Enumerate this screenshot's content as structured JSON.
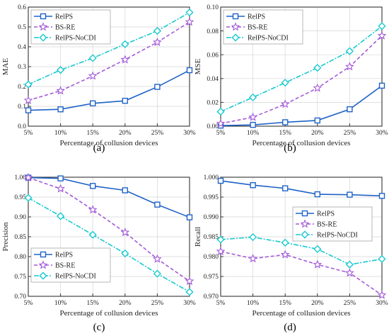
{
  "colors": {
    "relps": "#1f63c7",
    "bsre": "#a45ad8",
    "nocdi": "#19c9cf",
    "grid": "#d5d5d5",
    "axis": "#333333"
  },
  "chart_data": [
    {
      "type": "line",
      "panel": "(a)",
      "xlabel": "Percentage of collusion devices",
      "ylabel": "MAE",
      "categories": [
        "5%",
        "10%",
        "15%",
        "20%",
        "25%",
        "30%"
      ],
      "ylim": [
        0,
        0.6
      ],
      "yticks": [
        "0.0",
        "0.1",
        "0.2",
        "0.3",
        "0.4",
        "0.5",
        "0.6"
      ],
      "grid": true,
      "legend": "top-left",
      "series": [
        {
          "name": "RelPS",
          "marker": "square",
          "values": [
            0.08,
            0.085,
            0.115,
            0.128,
            0.198,
            0.282
          ]
        },
        {
          "name": "BS-RE",
          "marker": "star",
          "values": [
            0.13,
            0.178,
            0.253,
            0.335,
            0.423,
            0.525
          ]
        },
        {
          "name": "RelPS-NoCDI",
          "marker": "diamond",
          "values": [
            0.21,
            0.283,
            0.343,
            0.413,
            0.48,
            0.573
          ]
        }
      ]
    },
    {
      "type": "line",
      "panel": "(b)",
      "xlabel": "Percentage of collusion devices",
      "ylabel": "MSE",
      "categories": [
        "5%",
        "10%",
        "15%",
        "20%",
        "25%",
        "30%"
      ],
      "ylim": [
        0,
        0.1
      ],
      "yticks": [
        "0.00",
        "0.02",
        "0.04",
        "0.06",
        "0.08",
        "0.10"
      ],
      "grid": true,
      "legend": "top-left",
      "series": [
        {
          "name": "RelPS",
          "marker": "square",
          "values": [
            0.0005,
            0.0011,
            0.0033,
            0.0048,
            0.0142,
            0.034
          ]
        },
        {
          "name": "BS-RE",
          "marker": "star",
          "values": [
            0.0022,
            0.0075,
            0.0185,
            0.032,
            0.05,
            0.076
          ]
        },
        {
          "name": "RelPS-NoCDI",
          "marker": "diamond",
          "values": [
            0.0122,
            0.0242,
            0.0365,
            0.049,
            0.063,
            0.084
          ]
        }
      ]
    },
    {
      "type": "line",
      "panel": "(c)",
      "xlabel": "Percentage of collusion devices",
      "ylabel": "Precision",
      "categories": [
        "5%",
        "10%",
        "15%",
        "20%",
        "25%",
        "30%"
      ],
      "ylim": [
        0.7,
        1.0
      ],
      "yticks": [
        "0.70",
        "0.75",
        "0.80",
        "0.85",
        "0.90",
        "0.95",
        "1.00"
      ],
      "grid": true,
      "legend": "bottom-left",
      "series": [
        {
          "name": "RelPS",
          "marker": "square",
          "values": [
            0.999,
            0.997,
            0.978,
            0.967,
            0.931,
            0.899
          ]
        },
        {
          "name": "BS-RE",
          "marker": "star",
          "values": [
            0.999,
            0.971,
            0.918,
            0.861,
            0.794,
            0.738
          ]
        },
        {
          "name": "RelPS-NoCDI",
          "marker": "diamond",
          "values": [
            0.948,
            0.902,
            0.855,
            0.808,
            0.757,
            0.711
          ]
        }
      ]
    },
    {
      "type": "line",
      "panel": "(d)",
      "xlabel": "Percentage of collusion devices",
      "ylabel": "Recall",
      "categories": [
        "5%",
        "10%",
        "15%",
        "20%",
        "25%",
        "30%"
      ],
      "ylim": [
        0.97,
        1.0
      ],
      "yticks": [
        "0.970",
        "0.975",
        "0.980",
        "0.985",
        "0.990",
        "0.995",
        "1.000"
      ],
      "grid": true,
      "legend": "middle-right",
      "series": [
        {
          "name": "RelPS",
          "marker": "square",
          "values": [
            0.9991,
            0.998,
            0.9972,
            0.9957,
            0.9956,
            0.9953
          ]
        },
        {
          "name": "BS-RE",
          "marker": "star",
          "values": [
            0.9813,
            0.9795,
            0.9805,
            0.978,
            0.9759,
            0.9703
          ]
        },
        {
          "name": "RelPS-NoCDI",
          "marker": "diamond",
          "values": [
            0.9843,
            0.9849,
            0.9835,
            0.9819,
            0.978,
            0.9794
          ]
        }
      ]
    }
  ]
}
